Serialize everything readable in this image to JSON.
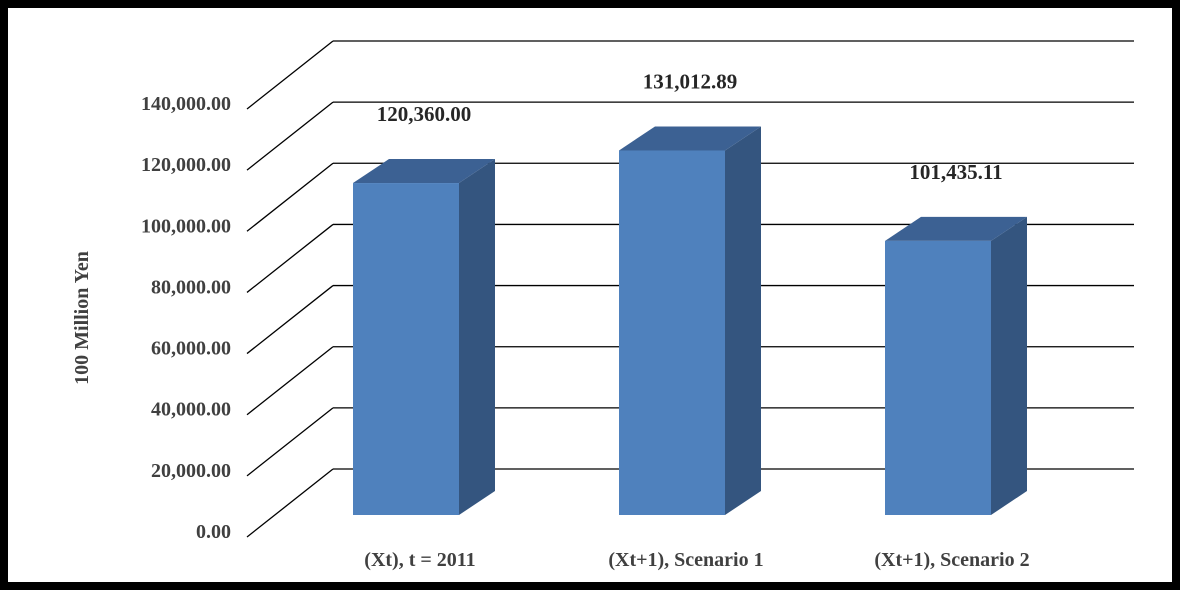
{
  "chart_data": {
    "type": "bar",
    "style": "3d-column",
    "categories": [
      "(Xt), t = 2011",
      "(Xt+1), Scenario 1",
      "(Xt+1), Scenario 2"
    ],
    "values": [
      120360.0,
      131012.89,
      101435.11
    ],
    "data_labels": [
      "120,360.00",
      "131,012.89",
      "101,435.11"
    ],
    "ylabel": "100 Million  Yen",
    "ylim": [
      0,
      140000
    ],
    "yticks": [
      0,
      20000,
      40000,
      60000,
      80000,
      100000,
      120000,
      140000
    ],
    "ytick_labels": [
      "0.00",
      "20,000.00",
      "40,000.00",
      "60,000.00",
      "80,000.00",
      "100,000.00",
      "120,000.00",
      "140,000.00"
    ],
    "grid": true,
    "legend": "none",
    "colors": {
      "bar_front": "#4f81bd",
      "bar_side": "#34557f",
      "bar_top": "#3c6193",
      "gridline": "#000000"
    }
  }
}
